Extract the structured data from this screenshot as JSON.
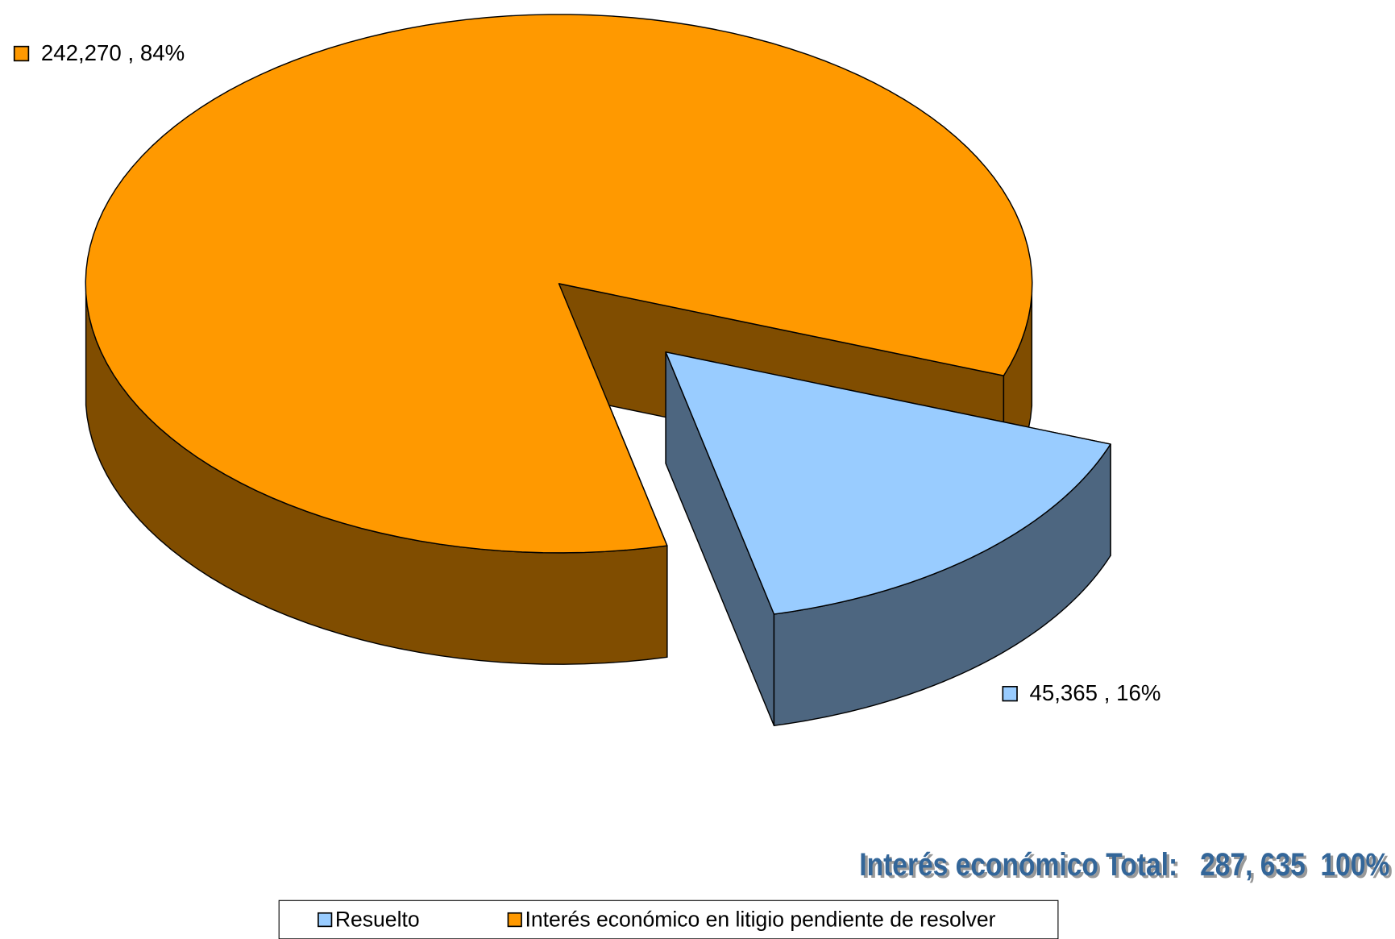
{
  "chart_data": {
    "type": "pie",
    "categories": [
      "Resuelto",
      "Interés económico en litigio pendiente de resolver"
    ],
    "values": [
      45365,
      242270
    ],
    "value_labels": [
      "45,365 , 16%",
      "242,270 , 84%"
    ],
    "colors": [
      "#99ccff",
      "#ff9900"
    ],
    "annotation": "Interés económico Total:   287, 635  100%",
    "legend": "bottom"
  }
}
